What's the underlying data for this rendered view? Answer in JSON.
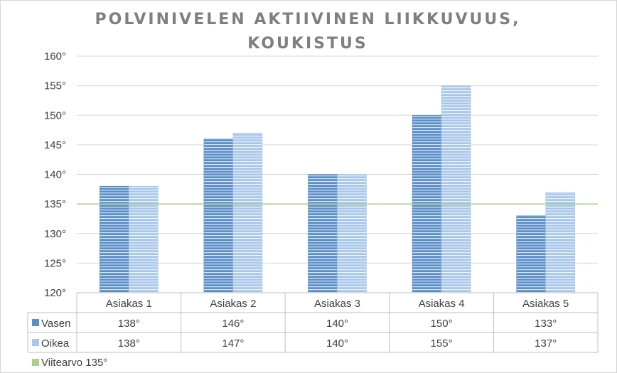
{
  "chart_data": {
    "type": "bar",
    "title_lines": [
      "POLVINIVELEN AKTIIVINEN LIIKKUVUUS,",
      "KOUKISTUS"
    ],
    "categories": [
      "Asiakas 1",
      "Asiakas 2",
      "Asiakas 3",
      "Asiakas 4",
      "Asiakas 5"
    ],
    "series": [
      {
        "name": "Vasen",
        "values": [
          138,
          146,
          140,
          150,
          133
        ],
        "labels": [
          "138°",
          "146°",
          "140°",
          "150°",
          "133°"
        ],
        "color": "#5b8fc8",
        "stripe": "#dbe6f3"
      },
      {
        "name": "Oikea",
        "values": [
          138,
          147,
          140,
          155,
          137
        ],
        "labels": [
          "138°",
          "147°",
          "140°",
          "155°",
          "137°"
        ],
        "color": "#a9c7ea",
        "stripe": "#eef4fb"
      }
    ],
    "reference": {
      "name": "Viitearvo 135°",
      "value": 135,
      "color": "#a9d18e"
    },
    "ylim": [
      120,
      160
    ],
    "y_ticks": [
      "120°",
      "125°",
      "130°",
      "135°",
      "140°",
      "145°",
      "150°",
      "155°",
      "160°"
    ],
    "legend": "data-table-bottom",
    "grid": true
  }
}
